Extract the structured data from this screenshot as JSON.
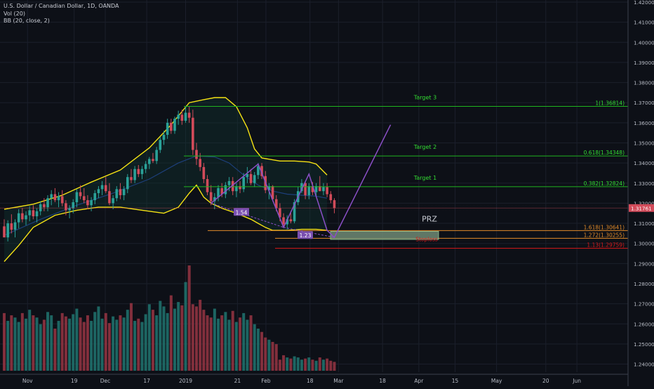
{
  "header": {
    "title": "U.S. Dollar / Canadian Dollar, 1D, OANDA",
    "indicator_vol": "Vol (20)",
    "indicator_bb": "BB (20, close, 2)"
  },
  "colors": {
    "background": "#0d1017",
    "grid": "#1b1f2b",
    "up": "#2aa198",
    "down": "#d24b5a",
    "bollinger": "#f5e214",
    "target_line": "#1fb31f",
    "target_text": "#33dd33",
    "pattern": "#8b4fc7",
    "fib_line": "#e08a2a",
    "stoploss": "#d71a1a",
    "price_tag": "#d24b5a"
  },
  "chart_data": {
    "type": "candlestick",
    "title": "U.S. Dollar / Canadian Dollar, 1D, OANDA",
    "ylim": [
      1.236,
      1.42
    ],
    "yticks": [
      "1.42000",
      "1.41000",
      "1.40000",
      "1.39000",
      "1.38000",
      "1.37000",
      "1.36000",
      "1.35000",
      "1.34000",
      "1.33000",
      "1.32000",
      "1.31000",
      "1.30000",
      "1.29000",
      "1.28000",
      "1.27000",
      "1.26000",
      "1.25000",
      "1.24000"
    ],
    "xticks": [
      "Nov",
      "19",
      "Dec",
      "17",
      "2019",
      "21",
      "Feb",
      "18",
      "Mar",
      "18",
      "Apr",
      "15",
      "May",
      "20",
      "Jun"
    ],
    "start_date": "2018-10-23",
    "last_price": "1.31761",
    "candles": [
      [
        1.3085,
        1.312,
        1.304,
        1.303
      ],
      [
        1.303,
        1.3115,
        1.301,
        1.31
      ],
      [
        1.31,
        1.3145,
        1.305,
        1.3068
      ],
      [
        1.3068,
        1.312,
        1.303,
        1.3105
      ],
      [
        1.3105,
        1.317,
        1.3075,
        1.315
      ],
      [
        1.315,
        1.3175,
        1.3105,
        1.312
      ],
      [
        1.312,
        1.316,
        1.309,
        1.314
      ],
      [
        1.314,
        1.3185,
        1.311,
        1.3165
      ],
      [
        1.3165,
        1.319,
        1.312,
        1.3135
      ],
      [
        1.3135,
        1.3175,
        1.3105,
        1.316
      ],
      [
        1.316,
        1.321,
        1.314,
        1.3195
      ],
      [
        1.3195,
        1.3225,
        1.316,
        1.318
      ],
      [
        1.318,
        1.324,
        1.316,
        1.3225
      ],
      [
        1.3225,
        1.3265,
        1.319,
        1.3245
      ],
      [
        1.3245,
        1.3275,
        1.3205,
        1.3215
      ],
      [
        1.3215,
        1.3255,
        1.318,
        1.3235
      ],
      [
        1.3235,
        1.3265,
        1.3185,
        1.32
      ],
      [
        1.32,
        1.3215,
        1.314,
        1.3165
      ],
      [
        1.3165,
        1.319,
        1.3125,
        1.3175
      ],
      [
        1.3175,
        1.322,
        1.315,
        1.3205
      ],
      [
        1.3205,
        1.327,
        1.318,
        1.3255
      ],
      [
        1.3255,
        1.329,
        1.322,
        1.3235
      ],
      [
        1.3235,
        1.3275,
        1.32,
        1.3215
      ],
      [
        1.3215,
        1.324,
        1.317,
        1.319
      ],
      [
        1.319,
        1.323,
        1.316,
        1.3215
      ],
      [
        1.3215,
        1.3265,
        1.3195,
        1.325
      ],
      [
        1.325,
        1.3285,
        1.3225,
        1.327
      ],
      [
        1.327,
        1.331,
        1.324,
        1.329
      ],
      [
        1.329,
        1.333,
        1.325,
        1.326
      ],
      [
        1.326,
        1.33,
        1.319,
        1.32
      ],
      [
        1.32,
        1.324,
        1.317,
        1.3225
      ],
      [
        1.3225,
        1.3285,
        1.321,
        1.327
      ],
      [
        1.327,
        1.33,
        1.322,
        1.324
      ],
      [
        1.324,
        1.3285,
        1.3215,
        1.327
      ],
      [
        1.327,
        1.3345,
        1.325,
        1.333
      ],
      [
        1.333,
        1.337,
        1.33,
        1.3315
      ],
      [
        1.3315,
        1.3385,
        1.33,
        1.337
      ],
      [
        1.337,
        1.339,
        1.333,
        1.3345
      ],
      [
        1.3345,
        1.3385,
        1.332,
        1.337
      ],
      [
        1.337,
        1.341,
        1.335,
        1.3395
      ],
      [
        1.3395,
        1.343,
        1.337,
        1.342
      ],
      [
        1.342,
        1.345,
        1.34,
        1.341
      ],
      [
        1.341,
        1.348,
        1.3395,
        1.3465
      ],
      [
        1.3465,
        1.353,
        1.345,
        1.3515
      ],
      [
        1.3515,
        1.356,
        1.349,
        1.354
      ],
      [
        1.354,
        1.362,
        1.352,
        1.36
      ],
      [
        1.36,
        1.362,
        1.3545,
        1.356
      ],
      [
        1.356,
        1.363,
        1.3545,
        1.362
      ],
      [
        1.362,
        1.366,
        1.359,
        1.364
      ],
      [
        1.364,
        1.3665,
        1.359,
        1.361
      ],
      [
        1.361,
        1.368,
        1.36,
        1.365
      ],
      [
        1.365,
        1.368,
        1.36,
        1.3625
      ],
      [
        1.3625,
        1.3665,
        1.344,
        1.3465
      ],
      [
        1.3465,
        1.35,
        1.339,
        1.342
      ],
      [
        1.342,
        1.345,
        1.336,
        1.338
      ],
      [
        1.338,
        1.34,
        1.33,
        1.332
      ],
      [
        1.332,
        1.334,
        1.324,
        1.3255
      ],
      [
        1.3255,
        1.329,
        1.319,
        1.321
      ],
      [
        1.321,
        1.325,
        1.317,
        1.323
      ],
      [
        1.323,
        1.329,
        1.321,
        1.3275
      ],
      [
        1.3275,
        1.33,
        1.323,
        1.3245
      ],
      [
        1.3245,
        1.3305,
        1.3225,
        1.329
      ],
      [
        1.329,
        1.333,
        1.326,
        1.331
      ],
      [
        1.331,
        1.333,
        1.324,
        1.326
      ],
      [
        1.326,
        1.33,
        1.323,
        1.3285
      ],
      [
        1.3285,
        1.331,
        1.325,
        1.327
      ],
      [
        1.327,
        1.335,
        1.3255,
        1.333
      ],
      [
        1.333,
        1.338,
        1.33,
        1.3345
      ],
      [
        1.3345,
        1.337,
        1.329,
        1.33
      ],
      [
        1.33,
        1.3355,
        1.328,
        1.334
      ],
      [
        1.334,
        1.34,
        1.332,
        1.3385
      ],
      [
        1.3385,
        1.34,
        1.332,
        1.3335
      ],
      [
        1.3335,
        1.336,
        1.325,
        1.3265
      ],
      [
        1.3265,
        1.33,
        1.322,
        1.3285
      ],
      [
        1.3285,
        1.329,
        1.321,
        1.322
      ],
      [
        1.322,
        1.324,
        1.316,
        1.3175
      ],
      [
        1.3175,
        1.32,
        1.311,
        1.313
      ],
      [
        1.313,
        1.315,
        1.308,
        1.3095
      ],
      [
        1.3095,
        1.314,
        1.307,
        1.312
      ],
      [
        1.312,
        1.316,
        1.31,
        1.311
      ],
      [
        1.311,
        1.322,
        1.31,
        1.3205
      ],
      [
        1.3205,
        1.328,
        1.319,
        1.326
      ],
      [
        1.326,
        1.332,
        1.325,
        1.33
      ],
      [
        1.33,
        1.331,
        1.322,
        1.324
      ],
      [
        1.324,
        1.33,
        1.322,
        1.3285
      ],
      [
        1.3285,
        1.3305,
        1.324,
        1.3255
      ],
      [
        1.3255,
        1.33,
        1.323,
        1.3285
      ],
      [
        1.3285,
        1.3335,
        1.326,
        1.326
      ],
      [
        1.326,
        1.33,
        1.324,
        1.328
      ],
      [
        1.328,
        1.33,
        1.323,
        1.3245
      ],
      [
        1.3245,
        1.326,
        1.32,
        1.3215
      ],
      [
        1.3215,
        1.3225,
        1.315,
        1.3176
      ]
    ],
    "volume": [
      52,
      45,
      50,
      48,
      44,
      52,
      47,
      55,
      50,
      48,
      42,
      46,
      53,
      50,
      38,
      45,
      52,
      49,
      47,
      51,
      56,
      48,
      44,
      50,
      45,
      53,
      58,
      47,
      52,
      43,
      49,
      46,
      50,
      48,
      55,
      61,
      45,
      47,
      44,
      51,
      60,
      55,
      50,
      63,
      58,
      52,
      68,
      56,
      62,
      59,
      80,
      95,
      60,
      58,
      64,
      55,
      50,
      48,
      56,
      47,
      50,
      53,
      46,
      54,
      44,
      48,
      52,
      46,
      50,
      42,
      38,
      35,
      30,
      28,
      26,
      24,
      10,
      14,
      12,
      11,
      13,
      12,
      10,
      11,
      12,
      10,
      9,
      12,
      10,
      11,
      9,
      8
    ],
    "bollinger_upper": [
      [
        0,
        1.317
      ],
      [
        8,
        1.3195
      ],
      [
        16,
        1.324
      ],
      [
        24,
        1.3305
      ],
      [
        32,
        1.3365
      ],
      [
        40,
        1.3475
      ],
      [
        46,
        1.359
      ],
      [
        51,
        1.37
      ],
      [
        55,
        1.3715
      ],
      [
        58,
        1.3725
      ],
      [
        61,
        1.3725
      ],
      [
        64,
        1.368
      ],
      [
        67,
        1.3575
      ],
      [
        69,
        1.347
      ],
      [
        71,
        1.3425
      ],
      [
        76,
        1.341
      ],
      [
        80,
        1.341
      ],
      [
        84,
        1.3405
      ],
      [
        86,
        1.3395
      ],
      [
        89,
        1.334
      ]
    ],
    "bollinger_lower": [
      [
        0,
        1.291
      ],
      [
        4,
        1.299
      ],
      [
        8,
        1.308
      ],
      [
        14,
        1.314
      ],
      [
        20,
        1.3165
      ],
      [
        26,
        1.318
      ],
      [
        32,
        1.318
      ],
      [
        38,
        1.3165
      ],
      [
        44,
        1.315
      ],
      [
        48,
        1.318
      ],
      [
        51,
        1.325
      ],
      [
        53,
        1.329
      ],
      [
        55,
        1.323
      ],
      [
        57,
        1.32
      ],
      [
        60,
        1.3175
      ],
      [
        64,
        1.315
      ],
      [
        68,
        1.312
      ],
      [
        70,
        1.31
      ],
      [
        72,
        1.308
      ],
      [
        74,
        1.3065
      ],
      [
        78,
        1.3065
      ],
      [
        82,
        1.307
      ],
      [
        86,
        1.307
      ],
      [
        89,
        1.3065
      ]
    ],
    "bollinger_mid": [
      [
        0,
        1.304
      ],
      [
        10,
        1.312
      ],
      [
        20,
        1.319
      ],
      [
        30,
        1.325
      ],
      [
        40,
        1.332
      ],
      [
        48,
        1.34
      ],
      [
        53,
        1.3435
      ],
      [
        58,
        1.343
      ],
      [
        62,
        1.34
      ],
      [
        66,
        1.334
      ],
      [
        70,
        1.329
      ],
      [
        74,
        1.326
      ],
      [
        78,
        1.3245
      ],
      [
        82,
        1.324
      ],
      [
        86,
        1.3235
      ],
      [
        89,
        1.3225
      ]
    ],
    "target_lines": [
      {
        "label": "Target 3",
        "value": 1.36814,
        "text": "1(1.36814)"
      },
      {
        "label": "Target 2",
        "value": 1.34348,
        "text": "0.618(1.34348)"
      },
      {
        "label": "Target 1",
        "value": 1.32824,
        "text": "0.382(1.32824)"
      }
    ],
    "fib_levels": [
      {
        "text": "1.618(1.30641)",
        "value": 1.30641
      },
      {
        "text": "1.272(1.30255)",
        "value": 1.30255
      },
      {
        "text": "1.13(1.29759)",
        "value": 1.29759
      }
    ],
    "prz": {
      "label": "PRZ",
      "top": 1.306,
      "bottom": 1.302
    },
    "stoploss_label": "Stoploss",
    "pattern_labels": [
      {
        "text": "1.54"
      },
      {
        "text": "1.23"
      }
    ]
  }
}
